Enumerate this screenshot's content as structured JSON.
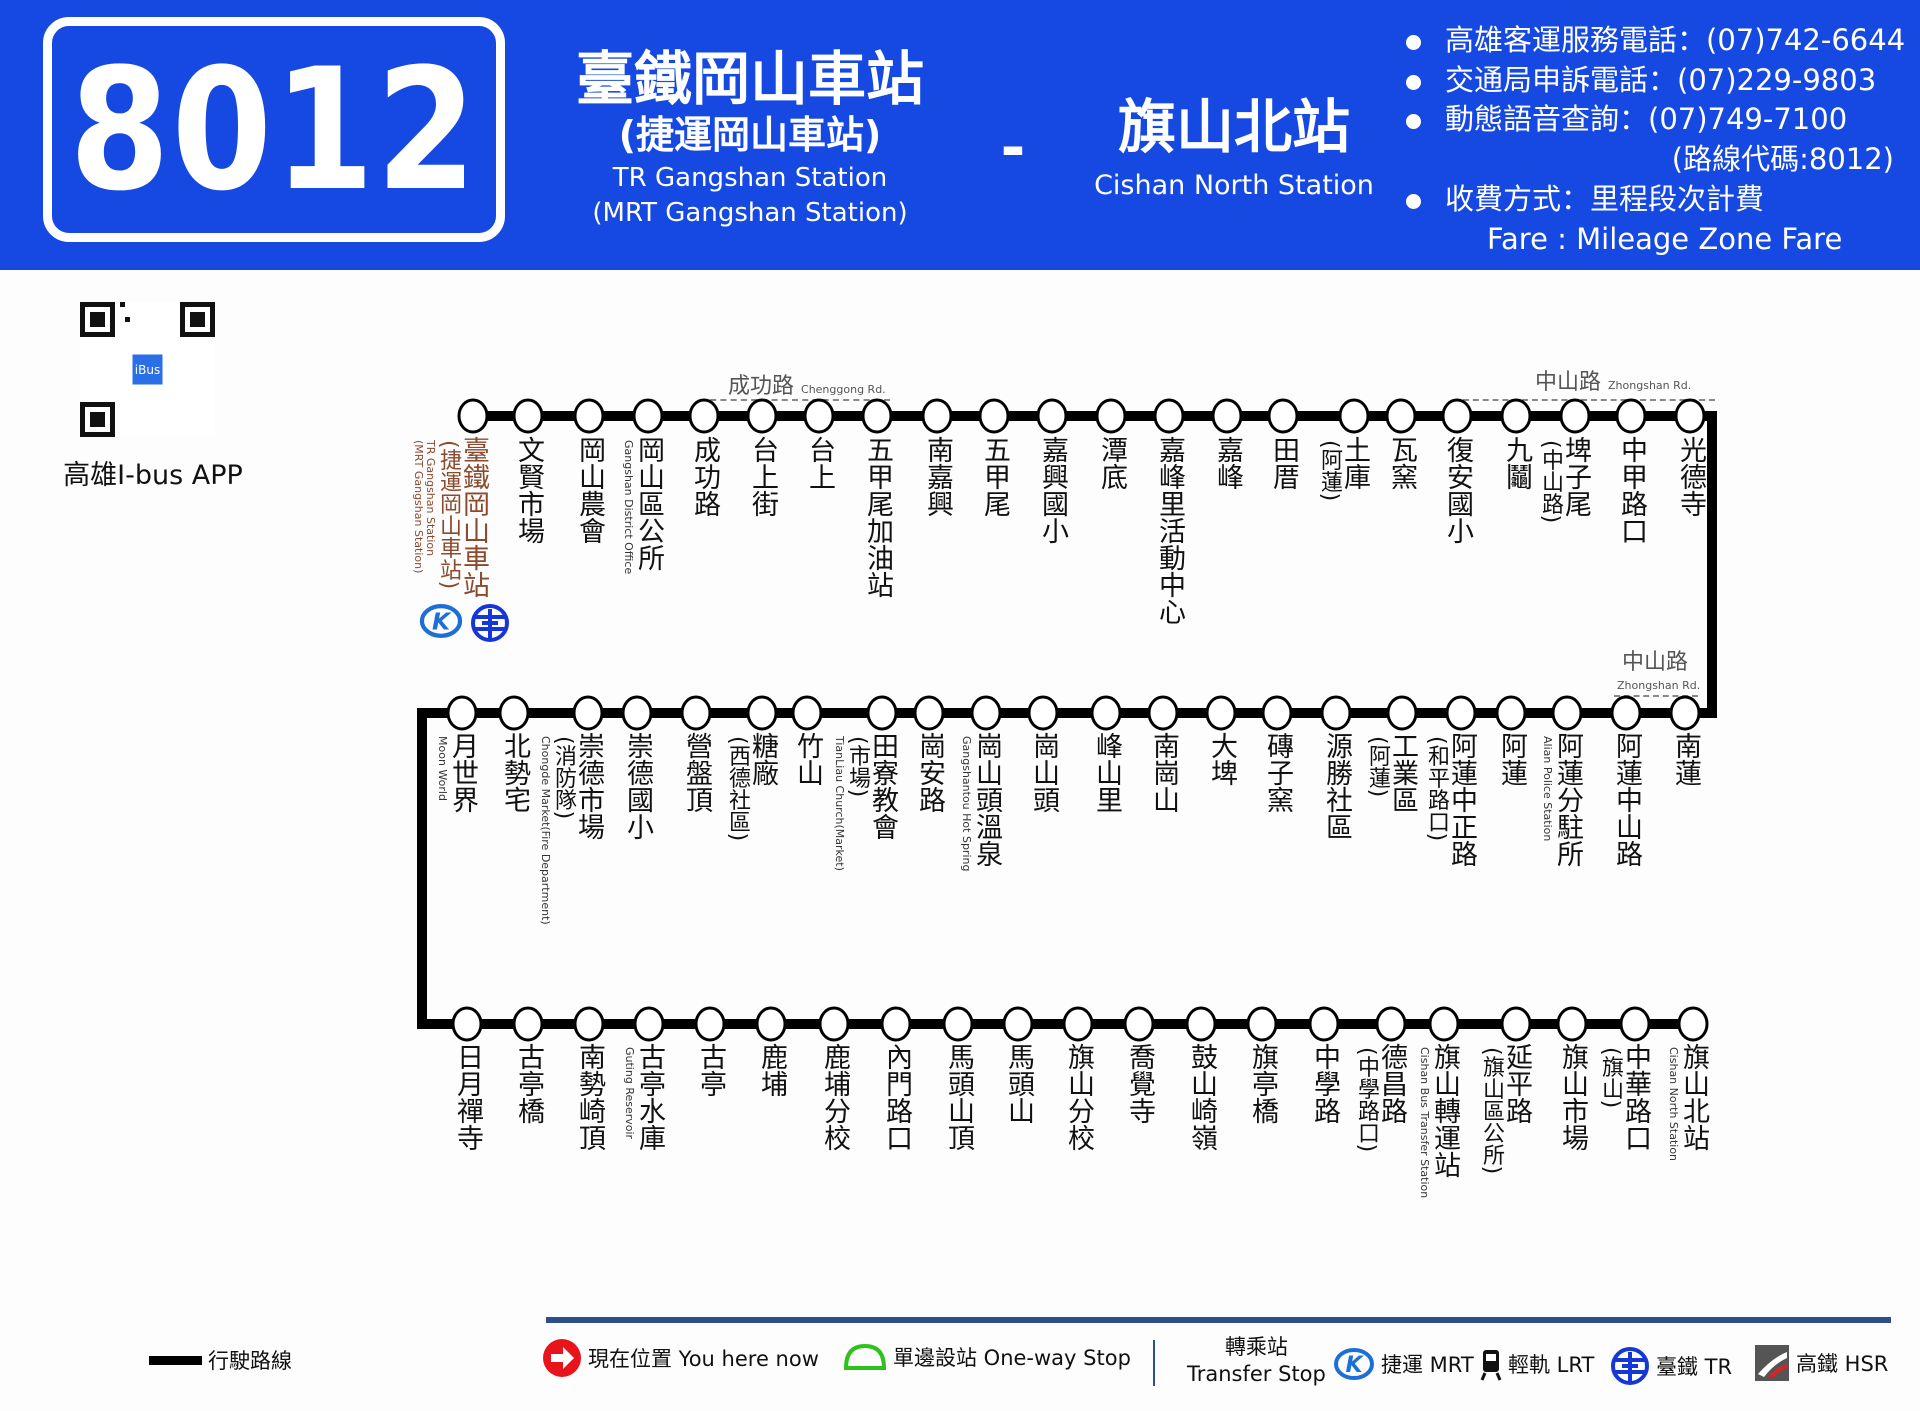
{
  "header": {
    "route_number": "8012",
    "origin_zh": "臺鐵岡山車站",
    "origin_sub_zh": "(捷運岡山車站)",
    "origin_en": "TR  Gangshan Station",
    "origin_sub_en": "(MRT Gangshan Station)",
    "separator": "-",
    "dest_zh": "旗山北站",
    "dest_en": "Cishan North Station",
    "info": [
      "高雄客運服務電話：(07)742-6644",
      "交通局申訴電話：(07)229-9803",
      "動態語音查詢：(07)749-7100"
    ],
    "route_code": "(路線代碼:8012)",
    "fare_zh": "收費方式：里程段次計費",
    "fare_en": "Fare     : Mileage Zone Fare",
    "bg_color": "#1649e2"
  },
  "qr": {
    "label": "高雄I-bus APP",
    "badge": "iBus"
  },
  "roads": {
    "chenggong_zh": "成功路",
    "chenggong_en": "Chenggong Rd.",
    "zhongshan_zh": "中山路",
    "zhongshan_en": "Zhongshan Rd."
  },
  "rows": [
    [
      {
        "name": "臺鐵岡山車站",
        "sub": "(捷運岡山車站)",
        "en": "TR Gangshan Station",
        "en2": "(MRT Gangshan Station)",
        "color": "#8b4a2e",
        "transfer": [
          "mrt",
          "tr"
        ]
      },
      {
        "name": "文賢市場"
      },
      {
        "name": "岡山農會"
      },
      {
        "name": "岡山區公所",
        "en": "Gangshan District Office"
      },
      {
        "name": "成功路"
      },
      {
        "name": "台上街"
      },
      {
        "name": "台上"
      },
      {
        "name": "五甲尾加油站"
      },
      {
        "name": "南嘉興"
      },
      {
        "name": "五甲尾"
      },
      {
        "name": "嘉興國小"
      },
      {
        "name": "潭底"
      },
      {
        "name": "嘉峰里活動中心"
      },
      {
        "name": "嘉峰"
      },
      {
        "name": "田厝"
      },
      {
        "name": "土庫",
        "sub": "(阿蓮)"
      },
      {
        "name": "瓦窯"
      },
      {
        "name": "復安國小"
      },
      {
        "name": "九鬮"
      },
      {
        "name": "埤子尾",
        "sub": "(中山路)"
      },
      {
        "name": "中甲路口"
      },
      {
        "name": "光德寺"
      }
    ],
    [
      {
        "name": "月世界",
        "en": "Moon World"
      },
      {
        "name": "北勢宅"
      },
      {
        "name": "崇德市場",
        "sub": "(消防隊)",
        "en": "Chongde Market(Fire Department)"
      },
      {
        "name": "崇德國小"
      },
      {
        "name": "營盤頂"
      },
      {
        "name": "糖廠",
        "sub": "(西德社區)"
      },
      {
        "name": "竹山"
      },
      {
        "name": "田寮教會",
        "sub": "(市場)",
        "en": "TianLiau Church(Market)"
      },
      {
        "name": "崗安路"
      },
      {
        "name": "崗山頭溫泉",
        "en": "Gangshantou Hot Spring"
      },
      {
        "name": "崗山頭"
      },
      {
        "name": "峰山里"
      },
      {
        "name": "南崗山"
      },
      {
        "name": "大埤"
      },
      {
        "name": "磚子窯"
      },
      {
        "name": "源勝社區"
      },
      {
        "name": "工業區",
        "sub": "(阿蓮)"
      },
      {
        "name": "阿蓮中正路",
        "sub": "(和平路口)"
      },
      {
        "name": "阿蓮"
      },
      {
        "name": "阿蓮分駐所",
        "en": "Alian Police Station"
      },
      {
        "name": "阿蓮中山路"
      },
      {
        "name": "南蓮"
      }
    ],
    [
      {
        "name": "日月禪寺"
      },
      {
        "name": "古亭橋"
      },
      {
        "name": "南勢崎頂"
      },
      {
        "name": "古亭水庫",
        "en": "Guting Reservoir"
      },
      {
        "name": "古亭"
      },
      {
        "name": "鹿埔"
      },
      {
        "name": "鹿埔分校"
      },
      {
        "name": "內門路口"
      },
      {
        "name": "馬頭山頂"
      },
      {
        "name": "馬頭山"
      },
      {
        "name": "旗山分校"
      },
      {
        "name": "喬覺寺"
      },
      {
        "name": "鼓山崎嶺"
      },
      {
        "name": "旗亭橋"
      },
      {
        "name": "中學路"
      },
      {
        "name": "德昌路",
        "sub": "(中學路口)"
      },
      {
        "name": "旗山轉運站",
        "en": "Cishan Bus Transfer Station"
      },
      {
        "name": "延平路",
        "sub": "(旗山區公所)"
      },
      {
        "name": "旗山市場"
      },
      {
        "name": "中華路口",
        "sub": "(旗山)"
      },
      {
        "name": "旗山北站",
        "en": "Cishan North Station"
      }
    ]
  ],
  "legend": {
    "route_line": "行駛路線",
    "you_here": "現在位置 You here now",
    "one_way": "單邊設站 One-way Stop",
    "transfer_zh": "轉乘站",
    "transfer_en": "Transfer Stop",
    "mrt": "捷運 MRT",
    "lrt": "輕軌 LRT",
    "tr": "臺鐵 TR",
    "hsr": "高鐵 HSR",
    "colors": {
      "you_here": "#e8141b",
      "one_way": "#2fc21f",
      "mrt": "#1d6fd8",
      "tr": "#1437d6",
      "line": "#2c4f8a"
    }
  }
}
